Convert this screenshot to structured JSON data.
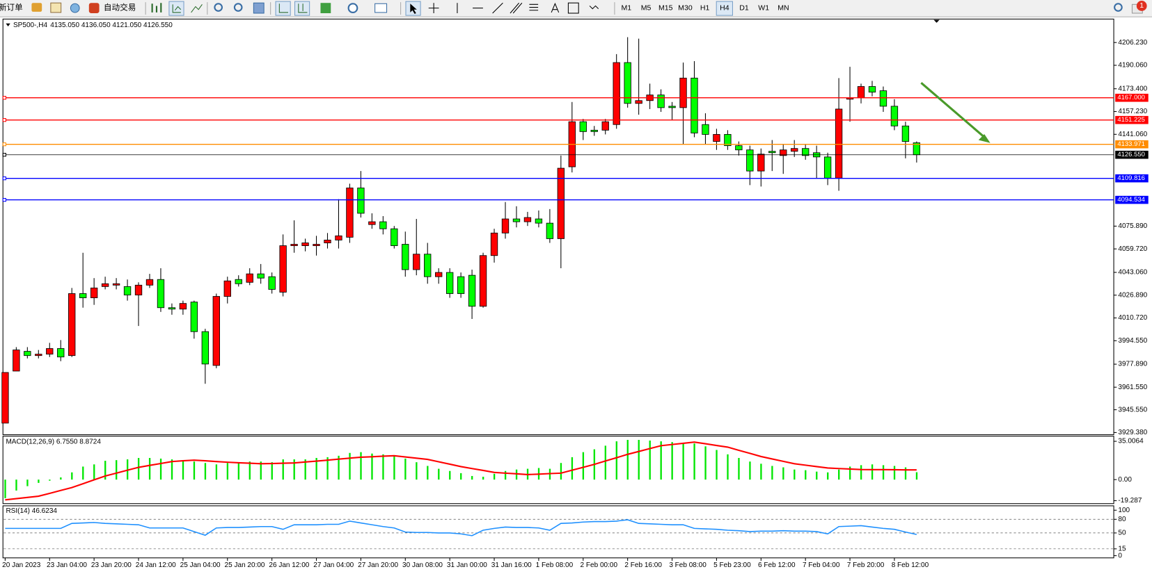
{
  "toolbar": {
    "buttons": [
      "新订单",
      "自动交易"
    ],
    "timeframes": [
      "M1",
      "M5",
      "M15",
      "M30",
      "H1",
      "H4",
      "D1",
      "W1",
      "MN"
    ],
    "active_timeframe": 5,
    "badge": "1"
  },
  "chart_data": [
    {
      "type": "candlestick",
      "title": "SP500-,H4",
      "ohlc_label": "4135.050 4136.050 4121.050 4126.550",
      "categories": [
        "20 Jan 2023",
        null,
        null,
        null,
        "23 Jan 04:00",
        null,
        null,
        null,
        "23 Jan 20:00",
        null,
        null,
        null,
        "24 Jan 12:00",
        null,
        null,
        null,
        "25 Jan 04:00",
        null,
        null,
        null,
        "25 Jan 20:00",
        null,
        null,
        null,
        "26 Jan 12:00",
        null,
        null,
        null,
        "27 Jan 04:00",
        null,
        null,
        null,
        "27 Jan 20:00",
        null,
        null,
        null,
        "30 Jan 08:00",
        null,
        null,
        null,
        "31 Jan 00:00",
        null,
        null,
        null,
        "31 Jan 16:00",
        null,
        null,
        null,
        "1 Feb 08:00",
        null,
        null,
        null,
        "2 Feb 00:00",
        null,
        null,
        null,
        "2 Feb 16:00",
        null,
        null,
        null,
        "3 Feb 08:00",
        null,
        null,
        null,
        "5 Feb 23:00",
        null,
        null,
        null,
        "6 Feb 12:00",
        null,
        null,
        null,
        "7 Feb 04:00",
        null,
        null,
        null,
        "7 Feb 20:00",
        null,
        null,
        null,
        "8 Feb 12:00",
        null,
        null
      ],
      "open": [
        3936,
        3973,
        3987,
        3984,
        3985,
        3989,
        3984,
        4028,
        4025,
        4033,
        4034,
        4033,
        4027,
        4034,
        4038,
        4018,
        4017,
        4022,
        4001,
        3977,
        4026,
        4038,
        4036,
        4042,
        4040,
        4029,
        4062,
        4062,
        4062,
        4064,
        4066,
        4068,
        4103,
        4077,
        4079,
        4074,
        4063,
        4045,
        4056,
        4040,
        4043,
        4040,
        4041,
        4019,
        4055,
        4071,
        4081,
        4079,
        4081,
        4078,
        4067,
        4118,
        4150,
        4144,
        4144,
        4148,
        4192,
        4163,
        4165,
        4169,
        4161,
        4160,
        4181,
        4148,
        4136,
        4141,
        4133,
        4130,
        4115,
        4129,
        4126,
        4129,
        4131,
        4128,
        4125,
        4110,
        4166,
        4167,
        4175,
        4172,
        4161,
        4147,
        4135.05
      ],
      "high": [
        3972,
        3990,
        3990,
        3988,
        3993,
        3995,
        4032,
        4057,
        4039,
        4040,
        4039,
        4038,
        4036,
        4042,
        4046,
        4021,
        4023,
        4023,
        4003,
        4028,
        4040,
        4041,
        4046,
        4049,
        4043,
        4070,
        4080,
        4067,
        4069,
        4071,
        4095,
        4106,
        4115,
        4085,
        4083,
        4076,
        4072,
        4081,
        4064,
        4046,
        4046,
        4043,
        4045,
        4057,
        4074,
        4093,
        4090,
        4086,
        4087,
        4088,
        4126,
        4164,
        4152,
        4147,
        4152,
        4198,
        4210,
        4209,
        4177,
        4173,
        4164,
        4192,
        4193,
        4156,
        4145,
        4144,
        4136,
        4133,
        4131,
        4137,
        4134,
        4137,
        4134,
        4133,
        4128,
        4181,
        4189,
        4177,
        4179,
        4175,
        4166,
        4150,
        4136.05
      ],
      "low": [
        3936,
        3973,
        3982,
        3982,
        3983,
        3980,
        3983,
        4018,
        4020,
        4031,
        4031,
        4023,
        4005,
        4032,
        4015,
        4013,
        4013,
        3996,
        3964,
        3975,
        4021,
        4033,
        4034,
        4035,
        4028,
        4026,
        4057,
        4058,
        4055,
        4060,
        4060,
        4064,
        4082,
        4074,
        4070,
        4060,
        4040,
        4041,
        4035,
        4035,
        4025,
        4025,
        4010,
        4018,
        4050,
        4067,
        4075,
        4076,
        4075,
        4064,
        4046,
        4114,
        4137,
        4140,
        4141,
        4145,
        4160,
        4155,
        4159,
        4157,
        4151,
        4134,
        4139,
        4134,
        4130,
        4130,
        4126,
        4105,
        4104,
        4115,
        4113,
        4125,
        4123,
        4110,
        4105,
        4101,
        4150,
        4163,
        4168,
        4157,
        4144,
        4124,
        4121.05
      ],
      "close": [
        3972,
        3988,
        3984,
        3985,
        3989,
        3983,
        4028,
        4025,
        4032,
        4035,
        4035,
        4027,
        4034,
        4038,
        4018,
        4017,
        4021,
        4001,
        3978,
        4026,
        4037,
        4035,
        4042,
        4039,
        4031,
        4062,
        4063,
        4064,
        4063,
        4066,
        4069,
        4103,
        4085,
        4079,
        4074,
        4062,
        4045,
        4056,
        4040,
        4043,
        4028,
        4028,
        4019,
        4055,
        4071,
        4081,
        4079,
        4082,
        4078,
        4067,
        4117,
        4150,
        4143,
        4143,
        4150,
        4192,
        4163,
        4165,
        4169,
        4160,
        4160,
        4181,
        4142,
        4141,
        4141,
        4133,
        4130,
        4115,
        4127,
        4128,
        4130,
        4131,
        4126,
        4125,
        4110,
        4159,
        4167,
        4175,
        4171,
        4161,
        4147,
        4136,
        4126.55
      ],
      "up_color": "#ff0000",
      "down_color": "#00ff00",
      "ylim": [
        3929.38,
        4221.84
      ],
      "yticks": [
        {
          "value": 4206.23,
          "label": "4206.230"
        },
        {
          "value": 4190.06,
          "label": "4190.060"
        },
        {
          "value": 4173.4,
          "label": "4173.400"
        },
        {
          "value": 4157.23,
          "label": "4157.230"
        },
        {
          "value": 4141.06,
          "label": "4141.060"
        },
        {
          "value": 4075.89,
          "label": "4075.890"
        },
        {
          "value": 4059.72,
          "label": "4059.720"
        },
        {
          "value": 4043.06,
          "label": "4043.060"
        },
        {
          "value": 4026.89,
          "label": "4026.890"
        },
        {
          "value": 4010.72,
          "label": "4010.720"
        },
        {
          "value": 3994.55,
          "label": "3994.550"
        },
        {
          "value": 3977.89,
          "label": "3977.890"
        },
        {
          "value": 3961.55,
          "label": "3961.550"
        },
        {
          "value": 3945.55,
          "label": "3945.550"
        },
        {
          "value": 3929.38,
          "label": "3929.380"
        }
      ],
      "levels": [
        {
          "value": 4167,
          "label": "4167.000",
          "color": "#ff0000"
        },
        {
          "value": 4151.225,
          "label": "4151.225",
          "color": "#ff0000"
        },
        {
          "value": 4133.971,
          "label": "4133.971",
          "color": "#ff8c00"
        },
        {
          "value": 4126.55,
          "label": "4126.550",
          "color": "#000000"
        },
        {
          "value": 4109.816,
          "label": "4109.816",
          "color": "#0000ff"
        },
        {
          "value": 4094.534,
          "label": "4094.534",
          "color": "#0000ff"
        }
      ]
    },
    {
      "type": "macd",
      "title": "MACD(12,26,9) 6.7550 8.8724",
      "histogram_color": "#00e600",
      "signal_color": "#ff0000",
      "histogram": [
        -17,
        -10,
        -6,
        -3,
        -1,
        2,
        6.6,
        11.9,
        13.9,
        17.2,
        17.8,
        18.5,
        19.8,
        19.8,
        19.2,
        18.5,
        17.8,
        16.5,
        15.2,
        13.9,
        15.2,
        15.9,
        16.5,
        16.5,
        15.9,
        18.5,
        18.5,
        18.5,
        19.8,
        20.5,
        21.8,
        24.4,
        25.1,
        23.8,
        23.1,
        21.8,
        19.2,
        15.9,
        12.5,
        9.9,
        7.9,
        5.9,
        3.3,
        2.6,
        5.3,
        7.9,
        9.2,
        9.9,
        10.6,
        9.9,
        15.2,
        20.5,
        25.1,
        27.7,
        31.0,
        35.0,
        36.3,
        36.3,
        35.7,
        35.0,
        34.3,
        33.7,
        33.0,
        30.4,
        27.1,
        23.1,
        19.8,
        16.5,
        14.5,
        12.5,
        11.2,
        9.2,
        8.6,
        7.3,
        6.6,
        9.2,
        11.9,
        13.2,
        13.9,
        13.2,
        12.5,
        11.2,
        6.755
      ],
      "signal": [
        -18.5,
        -17.4,
        -16.3,
        -15.2,
        -12.6,
        -9.9,
        -7.3,
        -3.8,
        -0.2,
        3.3,
        5.9,
        8.6,
        11.2,
        13.0,
        14.7,
        16.5,
        17.2,
        17.8,
        17.2,
        16.5,
        15.9,
        15.4,
        15.0,
        14.5,
        14.7,
        15.0,
        15.2,
        16.1,
        16.9,
        17.8,
        18.7,
        19.6,
        20.5,
        20.9,
        21.4,
        21.8,
        20.7,
        19.6,
        18.5,
        16.3,
        14.1,
        11.9,
        10.1,
        8.4,
        6.6,
        5.9,
        5.3,
        4.6,
        5.0,
        5.5,
        5.9,
        8.6,
        11.2,
        13.9,
        17.0,
        20.0,
        23.1,
        25.7,
        28.4,
        31.0,
        32.1,
        33.2,
        34.3,
        32.8,
        31.2,
        29.7,
        26.8,
        24.0,
        21.1,
        18.9,
        16.7,
        14.5,
        13.2,
        11.9,
        10.6,
        10.1,
        9.7,
        9.2,
        9.1,
        9.1,
        9.0,
        8.9,
        8.8724
      ],
      "ylim": [
        -19.287,
        35.0064
      ],
      "yticks": [
        35.0064,
        {
          "value": 0,
          "label": "0.00"
        },
        -19.287
      ]
    },
    {
      "type": "rsi",
      "title": "RSI(14) 46.6234",
      "color": "#1e90ff",
      "values": [
        60,
        60,
        60,
        60,
        60,
        60,
        71,
        72,
        73,
        71,
        70,
        69,
        68,
        61,
        61,
        61,
        61,
        53,
        45,
        61,
        62,
        62,
        63,
        64,
        64,
        58,
        68,
        68,
        68,
        69,
        69,
        76,
        72,
        68,
        64,
        61,
        52,
        51,
        51,
        50,
        50,
        48,
        44,
        56,
        60,
        63,
        62,
        62,
        61,
        56,
        71,
        72,
        74,
        75,
        75,
        76,
        79,
        71,
        70,
        69,
        68,
        68,
        60,
        59,
        58,
        56,
        55,
        53,
        54,
        54,
        55,
        54,
        54,
        53,
        48,
        64,
        65,
        66,
        63,
        60,
        58,
        52,
        46.6234
      ],
      "ylim": [
        0,
        100
      ],
      "yticks": [
        100,
        80,
        50,
        15,
        0
      ]
    }
  ]
}
